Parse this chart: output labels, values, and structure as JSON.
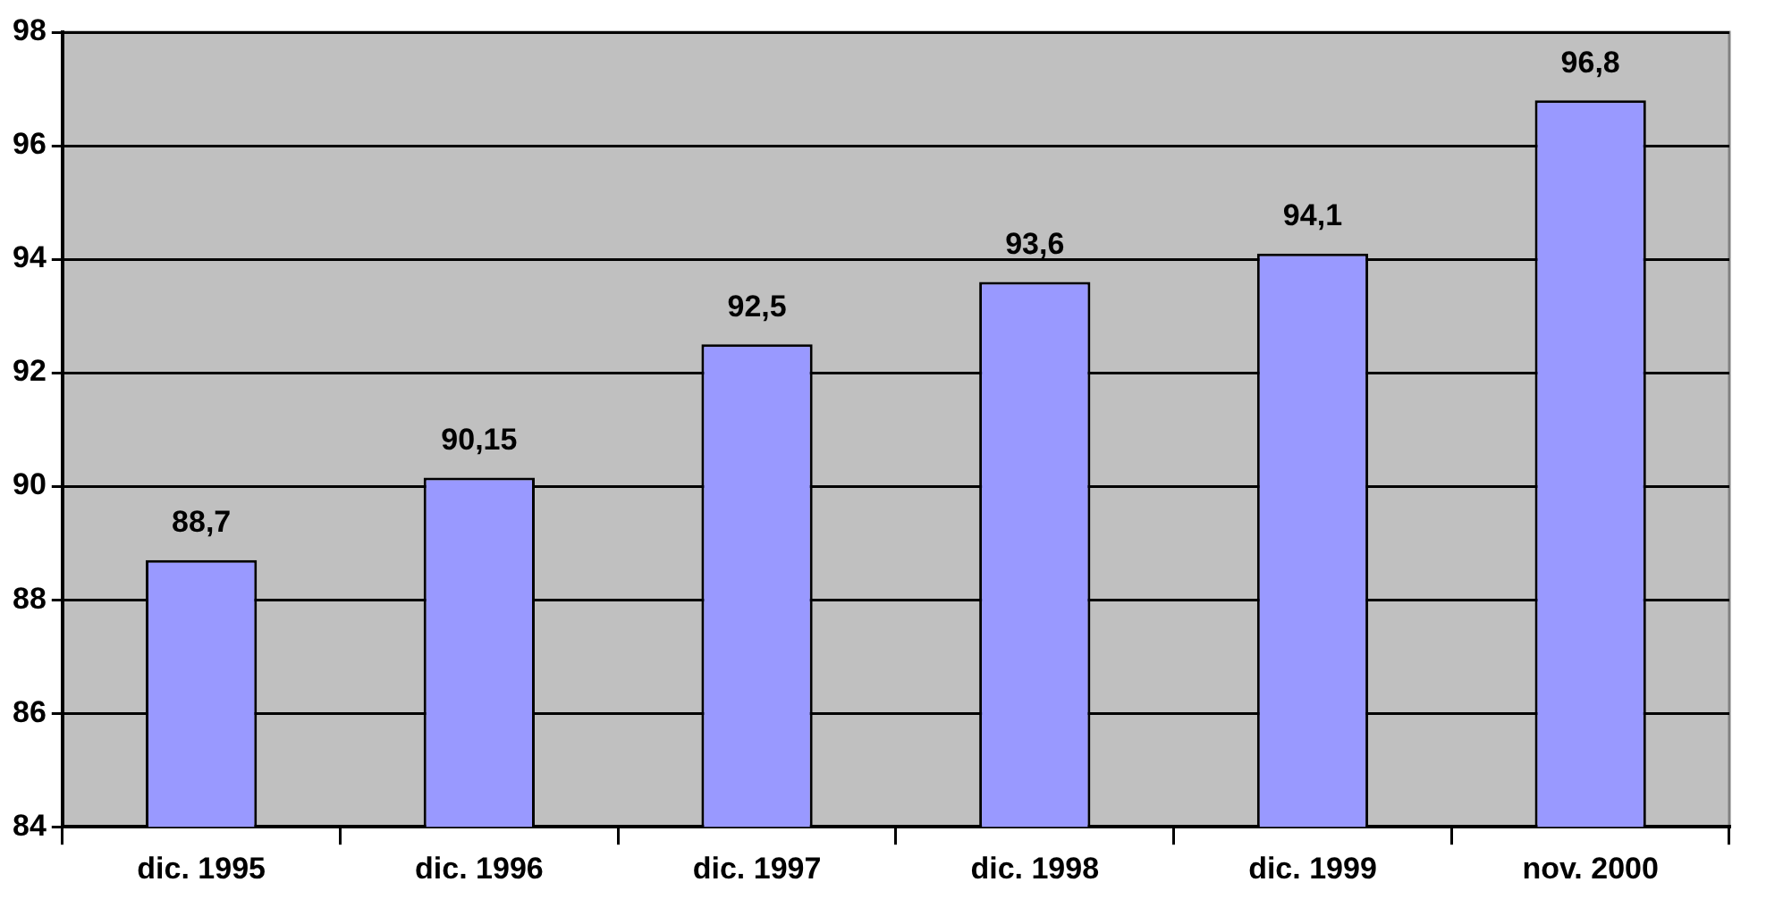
{
  "chart_data": {
    "type": "bar",
    "categories": [
      "dic. 1995",
      "dic. 1996",
      "dic. 1997",
      "dic. 1998",
      "dic. 1999",
      "nov. 2000"
    ],
    "values": [
      88.7,
      90.15,
      92.5,
      93.6,
      94.1,
      96.8
    ],
    "value_labels": [
      "88,7",
      "90,15",
      "92,5",
      "93,6",
      "94,1",
      "96,8"
    ],
    "color": "#9999ff",
    "ylim": [
      84,
      98
    ],
    "yticks": [
      84,
      86,
      88,
      90,
      92,
      94,
      96,
      98
    ],
    "grid": "y"
  }
}
